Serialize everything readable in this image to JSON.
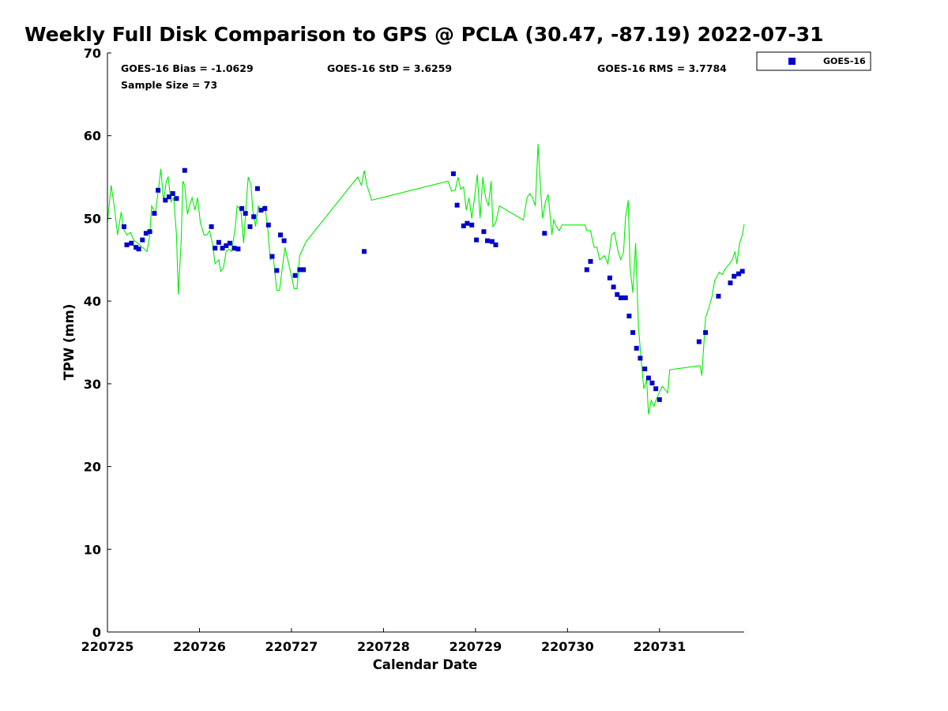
{
  "chart_data": {
    "type": "scatter",
    "title": "Weekly Full Disk Comparison to GPS @ PCLA (30.47, -87.19) 2022-07-31",
    "xlabel": "Calendar Date",
    "ylabel": "TPW (mm)",
    "xlim": [
      0,
      6.92
    ],
    "ylim": [
      0,
      70
    ],
    "x_ticks": [
      {
        "value": 0,
        "label": "220725"
      },
      {
        "value": 1,
        "label": "220726"
      },
      {
        "value": 2,
        "label": "220727"
      },
      {
        "value": 3,
        "label": "220728"
      },
      {
        "value": 4,
        "label": "220729"
      },
      {
        "value": 5,
        "label": "220730"
      },
      {
        "value": 6,
        "label": "220731"
      }
    ],
    "y_ticks": [
      0,
      10,
      20,
      30,
      40,
      50,
      60,
      70
    ],
    "grid": false,
    "legend_position": "outside-top-right",
    "stats": {
      "bias": "GOES-16 Bias = -1.0629",
      "std": "GOES-16 StD = 3.6259",
      "rms": "GOES-16 RMS = 3.7784",
      "sample_size": "Sample Size = 73"
    },
    "series": [
      {
        "name": "GOES-16",
        "kind": "scatter",
        "color": "#0000cc",
        "marker": "square",
        "points": [
          [
            0.18,
            49.0
          ],
          [
            0.21,
            46.8
          ],
          [
            0.26,
            47.0
          ],
          [
            0.31,
            46.5
          ],
          [
            0.34,
            46.3
          ],
          [
            0.38,
            47.4
          ],
          [
            0.42,
            48.2
          ],
          [
            0.46,
            48.4
          ],
          [
            0.51,
            50.6
          ],
          [
            0.55,
            53.4
          ],
          [
            0.63,
            52.2
          ],
          [
            0.67,
            52.6
          ],
          [
            0.71,
            53.0
          ],
          [
            0.75,
            52.4
          ],
          [
            0.84,
            55.8
          ],
          [
            1.13,
            49.0
          ],
          [
            1.17,
            46.4
          ],
          [
            1.21,
            47.1
          ],
          [
            1.25,
            46.4
          ],
          [
            1.29,
            46.7
          ],
          [
            1.33,
            47.0
          ],
          [
            1.38,
            46.4
          ],
          [
            1.42,
            46.3
          ],
          [
            1.46,
            51.2
          ],
          [
            1.5,
            50.6
          ],
          [
            1.55,
            49.0
          ],
          [
            1.59,
            50.2
          ],
          [
            1.63,
            53.6
          ],
          [
            1.67,
            51.0
          ],
          [
            1.71,
            51.2
          ],
          [
            1.75,
            49.2
          ],
          [
            1.79,
            45.4
          ],
          [
            1.84,
            43.7
          ],
          [
            1.88,
            48.0
          ],
          [
            1.92,
            47.3
          ],
          [
            2.04,
            43.1
          ],
          [
            2.09,
            43.8
          ],
          [
            2.13,
            43.8
          ],
          [
            2.79,
            46.0
          ],
          [
            3.76,
            55.4
          ],
          [
            3.8,
            51.6
          ],
          [
            3.87,
            49.1
          ],
          [
            3.91,
            49.4
          ],
          [
            3.96,
            49.2
          ],
          [
            4.01,
            47.4
          ],
          [
            4.09,
            48.4
          ],
          [
            4.13,
            47.3
          ],
          [
            4.18,
            47.2
          ],
          [
            4.22,
            46.8
          ],
          [
            4.75,
            48.2
          ],
          [
            5.21,
            43.8
          ],
          [
            5.25,
            44.8
          ],
          [
            5.46,
            42.8
          ],
          [
            5.5,
            41.7
          ],
          [
            5.54,
            40.8
          ],
          [
            5.58,
            40.4
          ],
          [
            5.63,
            40.4
          ],
          [
            5.67,
            38.2
          ],
          [
            5.71,
            36.2
          ],
          [
            5.75,
            34.3
          ],
          [
            5.79,
            33.1
          ],
          [
            5.84,
            31.8
          ],
          [
            5.88,
            30.7
          ],
          [
            5.92,
            30.1
          ],
          [
            5.96,
            29.4
          ],
          [
            6.0,
            28.1
          ],
          [
            6.43,
            35.1
          ],
          [
            6.5,
            36.2
          ],
          [
            6.64,
            40.6
          ],
          [
            6.77,
            42.2
          ],
          [
            6.81,
            43.0
          ],
          [
            6.86,
            43.3
          ],
          [
            6.9,
            43.6
          ]
        ]
      },
      {
        "kind": "line",
        "color": "#00ee00",
        "points": [
          [
            0.0,
            49.5
          ],
          [
            0.04,
            54.0
          ],
          [
            0.08,
            51.0
          ],
          [
            0.11,
            48.0
          ],
          [
            0.15,
            50.8
          ],
          [
            0.17,
            48.8
          ],
          [
            0.21,
            48.0
          ],
          [
            0.25,
            48.3
          ],
          [
            0.29,
            47.3
          ],
          [
            0.33,
            47.0
          ],
          [
            0.38,
            46.5
          ],
          [
            0.43,
            46.0
          ],
          [
            0.46,
            48.0
          ],
          [
            0.48,
            51.5
          ],
          [
            0.52,
            50.6
          ],
          [
            0.56,
            54.0
          ],
          [
            0.58,
            56.0
          ],
          [
            0.61,
            52.0
          ],
          [
            0.64,
            54.5
          ],
          [
            0.66,
            55.0
          ],
          [
            0.69,
            52.0
          ],
          [
            0.72,
            52.5
          ],
          [
            0.75,
            48.0
          ],
          [
            0.77,
            40.8
          ],
          [
            0.8,
            47.0
          ],
          [
            0.82,
            54.5
          ],
          [
            0.84,
            54.0
          ],
          [
            0.87,
            50.5
          ],
          [
            0.89,
            51.5
          ],
          [
            0.92,
            52.5
          ],
          [
            0.95,
            51.0
          ],
          [
            0.98,
            52.5
          ],
          [
            1.01,
            49.5
          ],
          [
            1.05,
            48.0
          ],
          [
            1.08,
            48.0
          ],
          [
            1.11,
            48.5
          ],
          [
            1.14,
            47.0
          ],
          [
            1.17,
            44.5
          ],
          [
            1.21,
            45.0
          ],
          [
            1.23,
            43.6
          ],
          [
            1.26,
            44.0
          ],
          [
            1.29,
            46.0
          ],
          [
            1.32,
            46.3
          ],
          [
            1.35,
            46.0
          ],
          [
            1.39,
            49.0
          ],
          [
            1.41,
            51.5
          ],
          [
            1.45,
            51.0
          ],
          [
            1.48,
            47.0
          ],
          [
            1.51,
            52.0
          ],
          [
            1.53,
            55.0
          ],
          [
            1.56,
            54.0
          ],
          [
            1.58,
            51.0
          ],
          [
            1.61,
            49.0
          ],
          [
            1.64,
            51.5
          ],
          [
            1.67,
            51.0
          ],
          [
            1.71,
            51.5
          ],
          [
            1.74,
            49.0
          ],
          [
            1.77,
            45.0
          ],
          [
            1.8,
            45.5
          ],
          [
            1.84,
            41.3
          ],
          [
            1.87,
            41.3
          ],
          [
            1.9,
            44.0
          ],
          [
            1.93,
            46.5
          ],
          [
            1.96,
            45.0
          ],
          [
            1.99,
            43.5
          ],
          [
            2.03,
            41.5
          ],
          [
            2.06,
            41.5
          ],
          [
            2.09,
            45.5
          ],
          [
            2.13,
            46.5
          ],
          [
            2.16,
            47.2
          ],
          [
            2.72,
            55.0
          ],
          [
            2.76,
            54.0
          ],
          [
            2.79,
            55.8
          ],
          [
            2.82,
            54.0
          ],
          [
            2.87,
            52.2
          ],
          [
            2.91,
            52.3
          ],
          [
            3.7,
            54.5
          ],
          [
            3.74,
            53.3
          ],
          [
            3.78,
            53.4
          ],
          [
            3.81,
            55.0
          ],
          [
            3.84,
            53.5
          ],
          [
            3.87,
            53.8
          ],
          [
            3.9,
            51.0
          ],
          [
            3.93,
            52.5
          ],
          [
            3.96,
            50.0
          ],
          [
            3.99,
            52.5
          ],
          [
            4.02,
            55.3
          ],
          [
            4.05,
            50.0
          ],
          [
            4.08,
            55.0
          ],
          [
            4.11,
            52.5
          ],
          [
            4.14,
            51.5
          ],
          [
            4.17,
            54.5
          ],
          [
            4.19,
            49.0
          ],
          [
            4.22,
            49.5
          ],
          [
            4.26,
            51.5
          ],
          [
            4.52,
            49.8
          ],
          [
            4.56,
            52.5
          ],
          [
            4.59,
            53.0
          ],
          [
            4.62,
            52.5
          ],
          [
            4.65,
            51.5
          ],
          [
            4.68,
            59.0
          ],
          [
            4.71,
            53.0
          ],
          [
            4.73,
            50.0
          ],
          [
            4.76,
            52.0
          ],
          [
            4.79,
            52.9
          ],
          [
            4.83,
            48.0
          ],
          [
            4.85,
            49.8
          ],
          [
            4.88,
            49.0
          ],
          [
            4.91,
            48.5
          ],
          [
            4.94,
            49.2
          ],
          [
            5.19,
            49.2
          ],
          [
            5.21,
            48.5
          ],
          [
            5.25,
            48.5
          ],
          [
            5.29,
            46.5
          ],
          [
            5.32,
            46.5
          ],
          [
            5.35,
            45.0
          ],
          [
            5.4,
            45.5
          ],
          [
            5.44,
            44.5
          ],
          [
            5.48,
            48.0
          ],
          [
            5.51,
            48.3
          ],
          [
            5.55,
            46.0
          ],
          [
            5.58,
            45.0
          ],
          [
            5.61,
            46.0
          ],
          [
            5.63,
            50.0
          ],
          [
            5.66,
            52.2
          ],
          [
            5.68,
            44.0
          ],
          [
            5.71,
            41.0
          ],
          [
            5.74,
            47.0
          ],
          [
            5.77,
            37.0
          ],
          [
            5.8,
            33.0
          ],
          [
            5.83,
            29.4
          ],
          [
            5.86,
            30.5
          ],
          [
            5.88,
            26.3
          ],
          [
            5.91,
            28.0
          ],
          [
            5.94,
            27.3
          ],
          [
            5.96,
            28.0
          ],
          [
            6.0,
            29.0
          ],
          [
            6.03,
            29.7
          ],
          [
            6.06,
            29.3
          ],
          [
            6.09,
            28.9
          ],
          [
            6.11,
            31.7
          ],
          [
            6.44,
            32.2
          ],
          [
            6.46,
            31.0
          ],
          [
            6.5,
            38.0
          ],
          [
            6.53,
            39.0
          ],
          [
            6.57,
            40.5
          ],
          [
            6.6,
            42.5
          ],
          [
            6.65,
            43.5
          ],
          [
            6.68,
            43.2
          ],
          [
            6.72,
            44.0
          ],
          [
            6.76,
            44.5
          ],
          [
            6.79,
            45.0
          ],
          [
            6.82,
            46.0
          ],
          [
            6.84,
            44.5
          ],
          [
            6.87,
            47.0
          ],
          [
            6.9,
            48.0
          ],
          [
            6.92,
            49.3
          ]
        ]
      }
    ]
  }
}
